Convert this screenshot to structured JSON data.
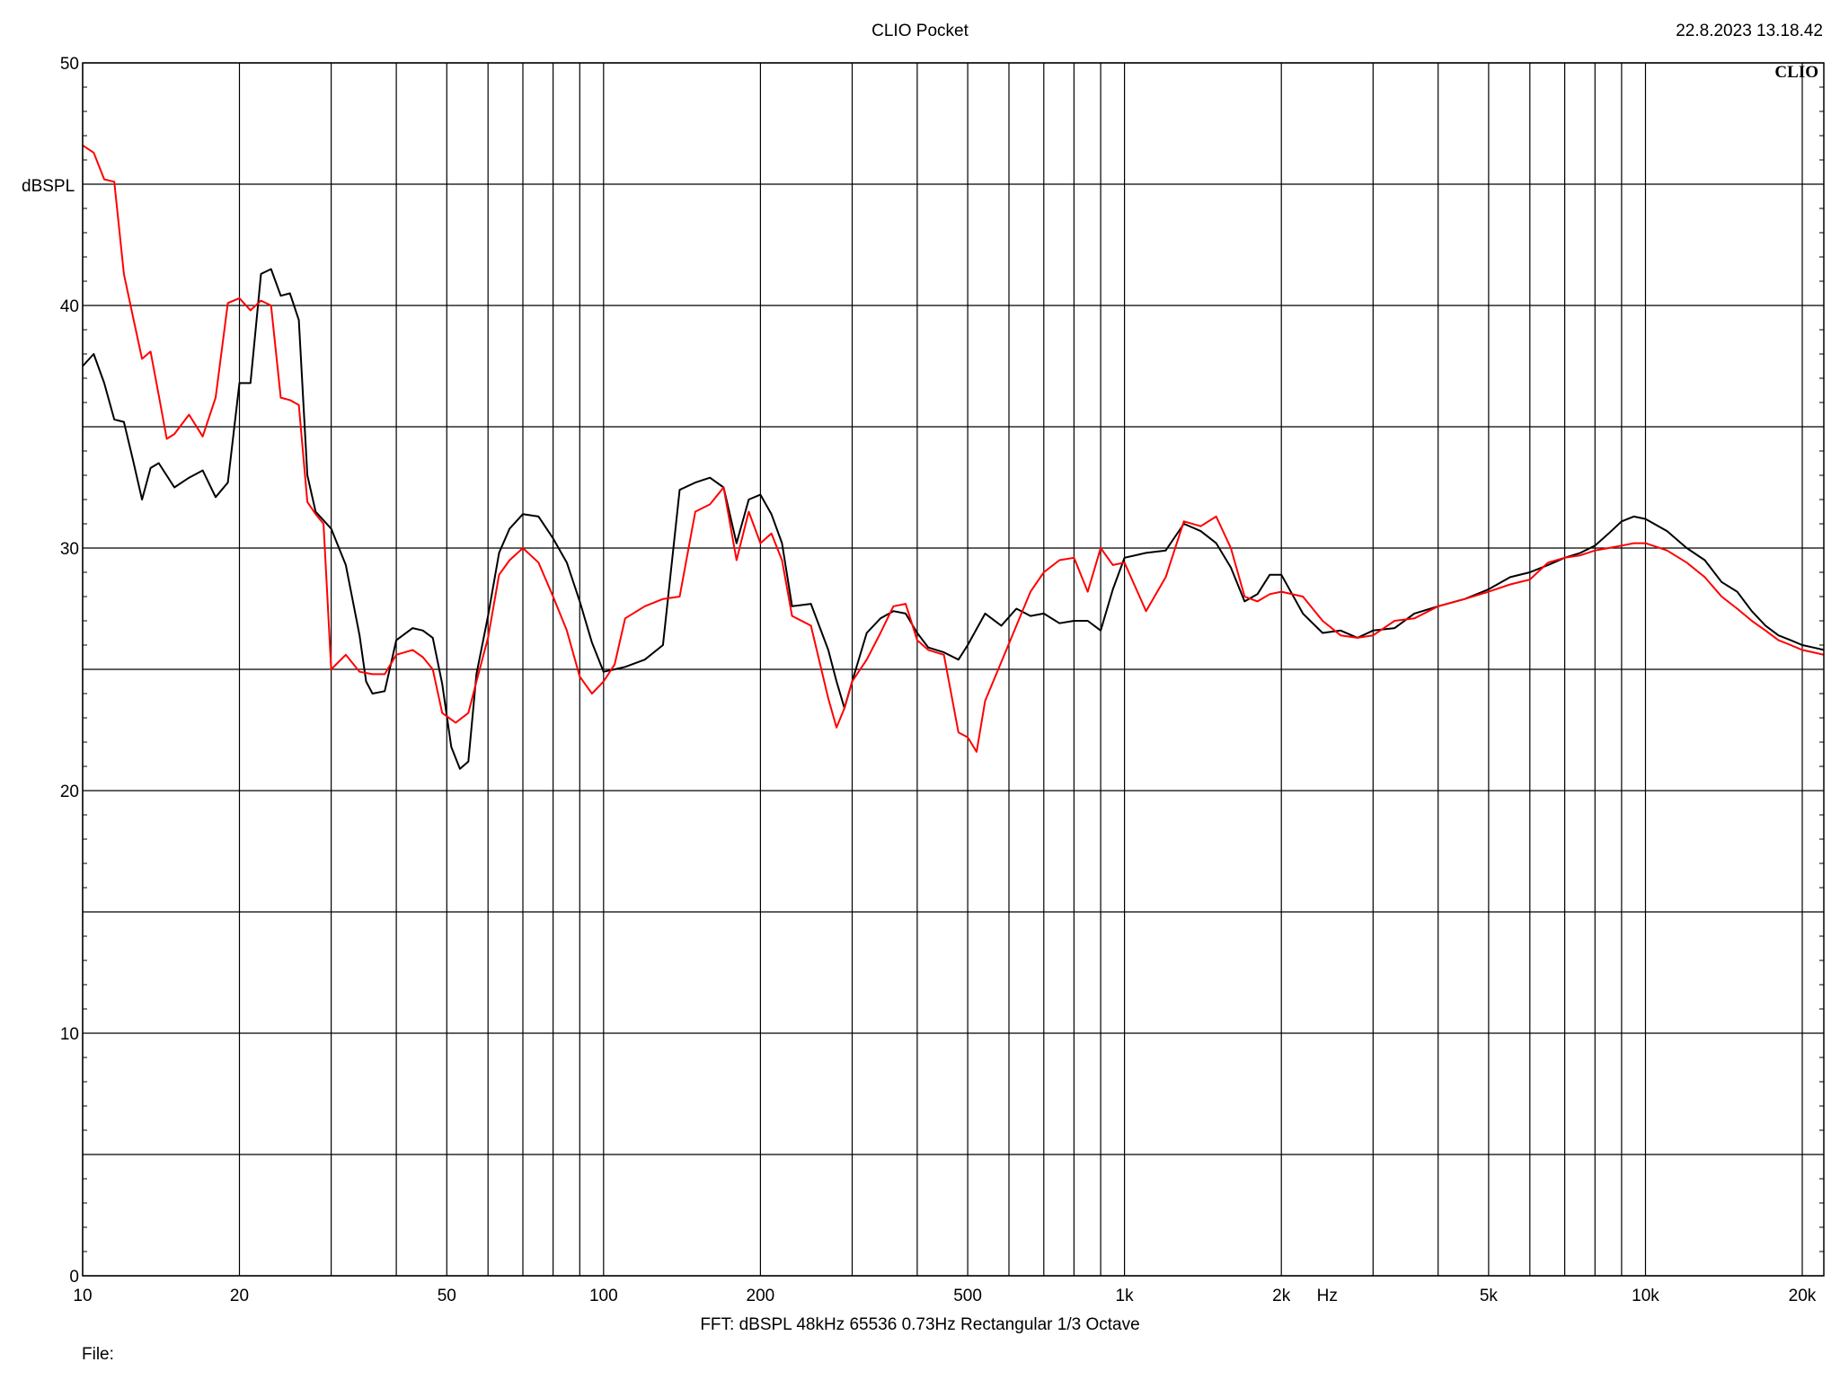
{
  "header": {
    "title": "CLIO Pocket",
    "timestamp": "22.8.2023 13.18.42"
  },
  "footer": {
    "info": "FFT:  dBSPL  48kHz   65536  0.73Hz  Rectangular  1/3 Octave",
    "file_label": "File:"
  },
  "logo_text": "CLIO",
  "chart_data": {
    "type": "line",
    "title": "",
    "xlabel": "Hz",
    "ylabel": "dBSPL",
    "x_scale": "log",
    "xlim": [
      10,
      22000
    ],
    "ylim": [
      0,
      50
    ],
    "grid": true,
    "x_ticks": [
      {
        "value": 10,
        "label": "10"
      },
      {
        "value": 20,
        "label": "20"
      },
      {
        "value": 50,
        "label": "50"
      },
      {
        "value": 100,
        "label": "100"
      },
      {
        "value": 200,
        "label": "200"
      },
      {
        "value": 500,
        "label": "500"
      },
      {
        "value": 1000,
        "label": "1k"
      },
      {
        "value": 2000,
        "label": "2k"
      },
      {
        "value": 5000,
        "label": "5k"
      },
      {
        "value": 10000,
        "label": "10k"
      },
      {
        "value": 20000,
        "label": "20k"
      }
    ],
    "x_gridlines": [
      10,
      20,
      30,
      40,
      50,
      60,
      70,
      80,
      90,
      100,
      200,
      300,
      400,
      500,
      600,
      700,
      800,
      900,
      1000,
      2000,
      3000,
      4000,
      5000,
      6000,
      7000,
      8000,
      9000,
      10000,
      20000
    ],
    "y_ticks": [
      0,
      10,
      20,
      30,
      40,
      50
    ],
    "y_gridlines": [
      5,
      15,
      25,
      35,
      45
    ],
    "series": [
      {
        "color": "#000000",
        "points": [
          [
            10,
            37.5
          ],
          [
            10.5,
            38.0
          ],
          [
            11,
            36.8
          ],
          [
            11.5,
            35.3
          ],
          [
            12,
            35.2
          ],
          [
            12.5,
            33.6
          ],
          [
            13,
            32.0
          ],
          [
            13.5,
            33.3
          ],
          [
            14,
            33.5
          ],
          [
            15,
            32.5
          ],
          [
            16,
            32.9
          ],
          [
            17,
            33.2
          ],
          [
            18,
            32.1
          ],
          [
            19,
            32.7
          ],
          [
            20,
            36.8
          ],
          [
            21,
            36.8
          ],
          [
            22,
            41.3
          ],
          [
            23,
            41.5
          ],
          [
            24,
            40.4
          ],
          [
            25,
            40.5
          ],
          [
            26,
            39.4
          ],
          [
            27,
            33.0
          ],
          [
            28,
            31.5
          ],
          [
            30,
            30.8
          ],
          [
            32,
            29.3
          ],
          [
            34,
            26.4
          ],
          [
            35,
            24.5
          ],
          [
            36,
            24.0
          ],
          [
            38,
            24.1
          ],
          [
            40,
            26.2
          ],
          [
            43,
            26.7
          ],
          [
            45,
            26.6
          ],
          [
            47,
            26.3
          ],
          [
            49,
            24.4
          ],
          [
            51,
            21.8
          ],
          [
            53,
            20.9
          ],
          [
            55,
            21.2
          ],
          [
            57,
            24.8
          ],
          [
            60,
            27.2
          ],
          [
            63,
            29.8
          ],
          [
            66,
            30.8
          ],
          [
            70,
            31.4
          ],
          [
            75,
            31.3
          ],
          [
            80,
            30.4
          ],
          [
            85,
            29.4
          ],
          [
            90,
            27.8
          ],
          [
            95,
            26.1
          ],
          [
            100,
            24.9
          ],
          [
            105,
            25.0
          ],
          [
            110,
            25.1
          ],
          [
            120,
            25.4
          ],
          [
            130,
            26.0
          ],
          [
            140,
            32.4
          ],
          [
            150,
            32.7
          ],
          [
            160,
            32.9
          ],
          [
            170,
            32.5
          ],
          [
            180,
            30.2
          ],
          [
            190,
            32.0
          ],
          [
            200,
            32.2
          ],
          [
            210,
            31.4
          ],
          [
            220,
            30.2
          ],
          [
            230,
            27.6
          ],
          [
            250,
            27.7
          ],
          [
            270,
            25.8
          ],
          [
            280,
            24.5
          ],
          [
            290,
            23.4
          ],
          [
            300,
            24.5
          ],
          [
            320,
            26.5
          ],
          [
            340,
            27.1
          ],
          [
            360,
            27.4
          ],
          [
            380,
            27.3
          ],
          [
            400,
            26.5
          ],
          [
            420,
            25.9
          ],
          [
            450,
            25.7
          ],
          [
            480,
            25.4
          ],
          [
            500,
            26.0
          ],
          [
            540,
            27.3
          ],
          [
            580,
            26.8
          ],
          [
            620,
            27.5
          ],
          [
            660,
            27.2
          ],
          [
            700,
            27.3
          ],
          [
            750,
            26.9
          ],
          [
            800,
            27.0
          ],
          [
            850,
            27.0
          ],
          [
            900,
            26.6
          ],
          [
            950,
            28.3
          ],
          [
            1000,
            29.6
          ],
          [
            1100,
            29.8
          ],
          [
            1200,
            29.9
          ],
          [
            1300,
            31.0
          ],
          [
            1400,
            30.7
          ],
          [
            1500,
            30.2
          ],
          [
            1600,
            29.2
          ],
          [
            1700,
            27.8
          ],
          [
            1800,
            28.1
          ],
          [
            1900,
            28.9
          ],
          [
            2000,
            28.9
          ],
          [
            2200,
            27.3
          ],
          [
            2400,
            26.5
          ],
          [
            2600,
            26.6
          ],
          [
            2800,
            26.3
          ],
          [
            3000,
            26.6
          ],
          [
            3300,
            26.7
          ],
          [
            3600,
            27.3
          ],
          [
            4000,
            27.6
          ],
          [
            4500,
            27.9
          ],
          [
            5000,
            28.3
          ],
          [
            5500,
            28.8
          ],
          [
            6000,
            29.0
          ],
          [
            6500,
            29.3
          ],
          [
            7000,
            29.6
          ],
          [
            7500,
            29.8
          ],
          [
            8000,
            30.1
          ],
          [
            8500,
            30.6
          ],
          [
            9000,
            31.1
          ],
          [
            9500,
            31.3
          ],
          [
            10000,
            31.2
          ],
          [
            11000,
            30.7
          ],
          [
            12000,
            30.0
          ],
          [
            13000,
            29.5
          ],
          [
            14000,
            28.6
          ],
          [
            15000,
            28.2
          ],
          [
            16000,
            27.4
          ],
          [
            17000,
            26.8
          ],
          [
            18000,
            26.4
          ],
          [
            19000,
            26.2
          ],
          [
            20000,
            26.0
          ],
          [
            21000,
            25.9
          ],
          [
            22000,
            25.8
          ]
        ]
      },
      {
        "color": "#ff0000",
        "points": [
          [
            10,
            46.6
          ],
          [
            10.5,
            46.3
          ],
          [
            11,
            45.2
          ],
          [
            11.5,
            45.1
          ],
          [
            12,
            41.3
          ],
          [
            12.5,
            39.5
          ],
          [
            13,
            37.8
          ],
          [
            13.5,
            38.1
          ],
          [
            14,
            36.3
          ],
          [
            14.5,
            34.5
          ],
          [
            15,
            34.7
          ],
          [
            16,
            35.5
          ],
          [
            17,
            34.6
          ],
          [
            18,
            36.2
          ],
          [
            19,
            40.1
          ],
          [
            20,
            40.3
          ],
          [
            21,
            39.8
          ],
          [
            22,
            40.2
          ],
          [
            23,
            40.0
          ],
          [
            24,
            36.2
          ],
          [
            25,
            36.1
          ],
          [
            26,
            35.9
          ],
          [
            27,
            31.9
          ],
          [
            28,
            31.4
          ],
          [
            29,
            31.0
          ],
          [
            30,
            25.0
          ],
          [
            32,
            25.6
          ],
          [
            34,
            24.9
          ],
          [
            36,
            24.8
          ],
          [
            38,
            24.8
          ],
          [
            40,
            25.6
          ],
          [
            43,
            25.8
          ],
          [
            45,
            25.5
          ],
          [
            47,
            25.0
          ],
          [
            49,
            23.2
          ],
          [
            52,
            22.8
          ],
          [
            55,
            23.2
          ],
          [
            57,
            24.5
          ],
          [
            60,
            26.3
          ],
          [
            63,
            28.9
          ],
          [
            66,
            29.5
          ],
          [
            70,
            30.0
          ],
          [
            75,
            29.4
          ],
          [
            80,
            28.0
          ],
          [
            85,
            26.6
          ],
          [
            90,
            24.7
          ],
          [
            95,
            24.0
          ],
          [
            100,
            24.5
          ],
          [
            105,
            25.2
          ],
          [
            110,
            27.1
          ],
          [
            120,
            27.6
          ],
          [
            130,
            27.9
          ],
          [
            140,
            28.0
          ],
          [
            150,
            31.5
          ],
          [
            160,
            31.8
          ],
          [
            170,
            32.5
          ],
          [
            180,
            29.5
          ],
          [
            190,
            31.5
          ],
          [
            200,
            30.2
          ],
          [
            210,
            30.6
          ],
          [
            220,
            29.5
          ],
          [
            230,
            27.2
          ],
          [
            250,
            26.8
          ],
          [
            270,
            23.8
          ],
          [
            280,
            22.6
          ],
          [
            290,
            23.4
          ],
          [
            300,
            24.5
          ],
          [
            320,
            25.4
          ],
          [
            340,
            26.5
          ],
          [
            360,
            27.6
          ],
          [
            380,
            27.7
          ],
          [
            400,
            26.2
          ],
          [
            420,
            25.8
          ],
          [
            450,
            25.6
          ],
          [
            480,
            22.4
          ],
          [
            500,
            22.2
          ],
          [
            520,
            21.6
          ],
          [
            540,
            23.7
          ],
          [
            580,
            25.3
          ],
          [
            620,
            26.8
          ],
          [
            660,
            28.2
          ],
          [
            700,
            29.0
          ],
          [
            750,
            29.5
          ],
          [
            800,
            29.6
          ],
          [
            850,
            28.2
          ],
          [
            900,
            30.0
          ],
          [
            950,
            29.3
          ],
          [
            1000,
            29.4
          ],
          [
            1100,
            27.4
          ],
          [
            1200,
            28.8
          ],
          [
            1300,
            31.1
          ],
          [
            1400,
            30.9
          ],
          [
            1500,
            31.3
          ],
          [
            1600,
            30.0
          ],
          [
            1700,
            28.0
          ],
          [
            1800,
            27.8
          ],
          [
            1900,
            28.1
          ],
          [
            2000,
            28.2
          ],
          [
            2200,
            28.0
          ],
          [
            2400,
            27.0
          ],
          [
            2600,
            26.4
          ],
          [
            2800,
            26.3
          ],
          [
            3000,
            26.4
          ],
          [
            3300,
            27.0
          ],
          [
            3600,
            27.1
          ],
          [
            4000,
            27.6
          ],
          [
            4500,
            27.9
          ],
          [
            5000,
            28.2
          ],
          [
            5500,
            28.5
          ],
          [
            6000,
            28.7
          ],
          [
            6500,
            29.4
          ],
          [
            7000,
            29.6
          ],
          [
            7500,
            29.7
          ],
          [
            8000,
            29.9
          ],
          [
            8500,
            30.0
          ],
          [
            9000,
            30.1
          ],
          [
            9500,
            30.2
          ],
          [
            10000,
            30.2
          ],
          [
            11000,
            29.9
          ],
          [
            12000,
            29.4
          ],
          [
            13000,
            28.8
          ],
          [
            14000,
            28.0
          ],
          [
            15000,
            27.5
          ],
          [
            16000,
            27.0
          ],
          [
            17000,
            26.6
          ],
          [
            18000,
            26.2
          ],
          [
            19000,
            26.0
          ],
          [
            20000,
            25.8
          ],
          [
            21000,
            25.7
          ],
          [
            22000,
            25.6
          ]
        ]
      }
    ]
  }
}
